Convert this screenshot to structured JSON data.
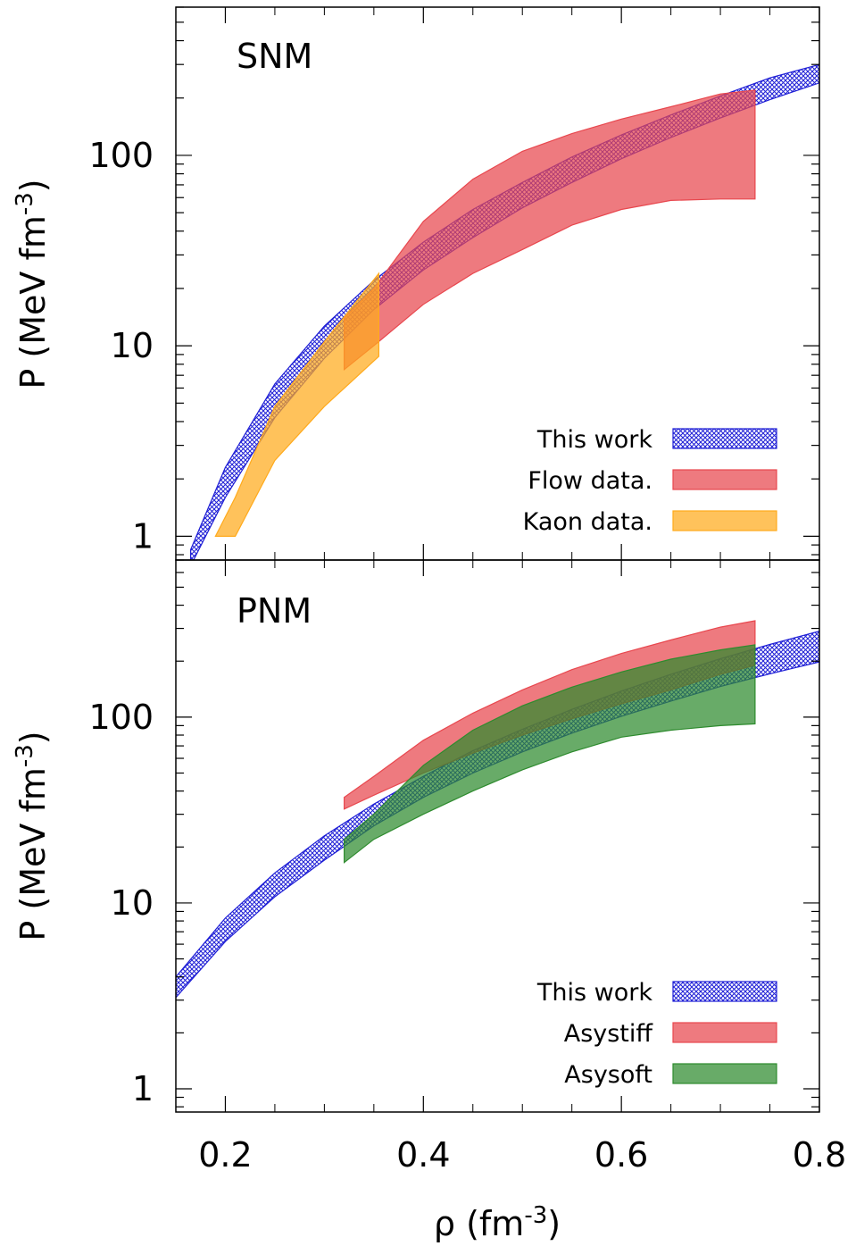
{
  "chart_data": [
    {
      "type": "area",
      "panel_label": "SNM",
      "xlabel": "ρ (fm⁻³)",
      "ylabel": "P (MeV fm⁻³)",
      "xlim": [
        0.15,
        0.8
      ],
      "ylim": [
        0.75,
        600
      ],
      "yscale": "log",
      "x_ticks": [
        0.2,
        0.4,
        0.6,
        0.8
      ],
      "y_ticks": [
        1,
        10,
        100
      ],
      "legend_position": "bottom-right",
      "series": [
        {
          "name": "This work",
          "color": "#1f1fd6",
          "pattern": "crosshatch",
          "x": [
            0.165,
            0.2,
            0.25,
            0.3,
            0.35,
            0.4,
            0.45,
            0.5,
            0.55,
            0.6,
            0.65,
            0.7,
            0.75,
            0.8
          ],
          "lower": [
            0.7,
            1.6,
            4.2,
            8.6,
            15.5,
            25,
            37,
            53,
            72,
            96,
            124,
            157,
            196,
            240
          ],
          "upper": [
            0.85,
            2.3,
            6.3,
            12.7,
            22,
            35,
            52,
            72,
            98,
            128,
            163,
            205,
            255,
            300
          ]
        },
        {
          "name": "Flow data.",
          "color": "#e8474e",
          "x": [
            0.32,
            0.35,
            0.4,
            0.45,
            0.5,
            0.55,
            0.6,
            0.65,
            0.7,
            0.735
          ],
          "lower": [
            7.5,
            10,
            16.5,
            24,
            32,
            43,
            52,
            58,
            59,
            59
          ],
          "upper": [
            14,
            20,
            45,
            75,
            105,
            130,
            155,
            180,
            210,
            220
          ]
        },
        {
          "name": "Kaon data.",
          "color": "#ffaa1c",
          "x": [
            0.19,
            0.21,
            0.25,
            0.3,
            0.355
          ],
          "lower": [
            1.0,
            1.0,
            2.5,
            4.8,
            8.8
          ],
          "upper": [
            1.0,
            1.6,
            4.8,
            10.5,
            24
          ]
        }
      ]
    },
    {
      "type": "area",
      "panel_label": "PNM",
      "xlabel": "ρ (fm⁻³)",
      "ylabel": "P (MeV fm⁻³)",
      "xlim": [
        0.15,
        0.8
      ],
      "ylim": [
        0.75,
        700
      ],
      "yscale": "log",
      "x_ticks": [
        0.2,
        0.4,
        0.6,
        0.8
      ],
      "y_ticks": [
        1,
        10,
        100
      ],
      "legend_position": "bottom-right",
      "series": [
        {
          "name": "This work",
          "color": "#1f1fd6",
          "pattern": "crosshatch",
          "x": [
            0.15,
            0.2,
            0.25,
            0.3,
            0.35,
            0.4,
            0.45,
            0.5,
            0.55,
            0.6,
            0.65,
            0.7,
            0.75,
            0.8
          ],
          "lower": [
            3.1,
            6.2,
            10.8,
            17,
            26,
            37,
            50,
            65,
            82,
            101,
            122,
            146,
            171,
            198
          ],
          "upper": [
            4.0,
            8.3,
            14.5,
            23,
            34,
            48,
            66,
            86,
            110,
            138,
            170,
            206,
            246,
            290
          ]
        },
        {
          "name": "Asystiff",
          "color": "#e8474e",
          "x": [
            0.32,
            0.35,
            0.4,
            0.45,
            0.5,
            0.55,
            0.6,
            0.65,
            0.7,
            0.735
          ],
          "lower": [
            32,
            38,
            50,
            64,
            80,
            98,
            118,
            140,
            170,
            190
          ],
          "upper": [
            37,
            48,
            75,
            105,
            140,
            180,
            220,
            260,
            305,
            330
          ]
        },
        {
          "name": "Asysoft",
          "color": "#2e8b2e",
          "x": [
            0.32,
            0.35,
            0.4,
            0.45,
            0.5,
            0.55,
            0.6,
            0.65,
            0.7,
            0.735
          ],
          "lower": [
            16.5,
            22,
            30,
            40,
            52,
            65,
            78,
            85,
            90,
            92
          ],
          "upper": [
            22,
            30,
            55,
            85,
            115,
            145,
            175,
            205,
            230,
            245
          ]
        }
      ]
    }
  ],
  "labels": {
    "x_axis": "ρ (fm",
    "x_axis_sup": "-3",
    "x_axis_close": ")",
    "y_axis": "P (MeV fm",
    "y_axis_sup": "-3",
    "y_axis_close": ")",
    "x_tick_labels": [
      "0.2",
      "0.4",
      "0.6",
      "0.8"
    ],
    "y_tick_labels": [
      "1",
      "10",
      "100"
    ]
  }
}
